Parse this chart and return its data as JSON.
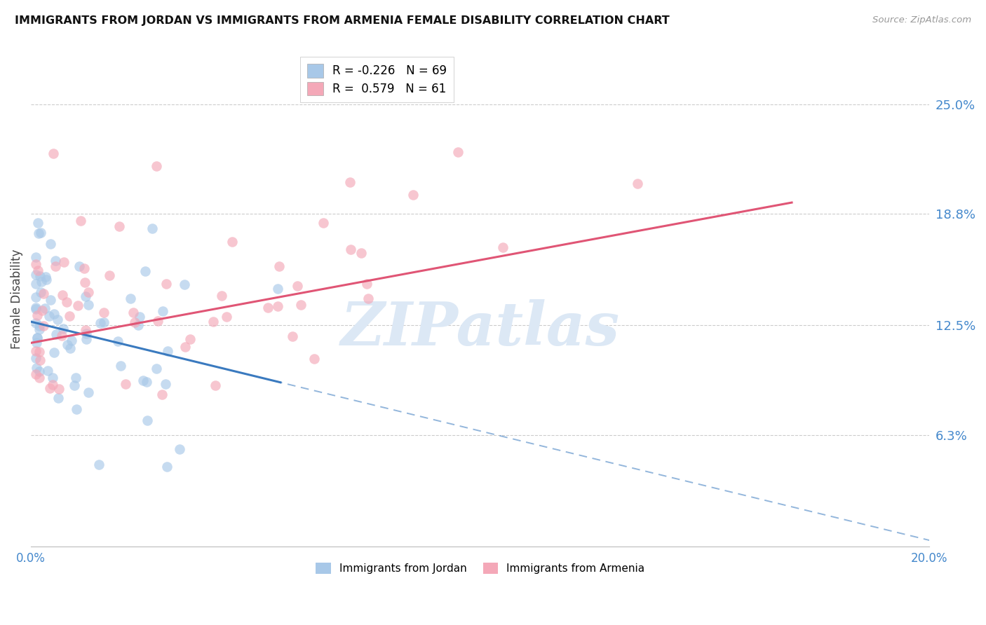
{
  "title": "IMMIGRANTS FROM JORDAN VS IMMIGRANTS FROM ARMENIA FEMALE DISABILITY CORRELATION CHART",
  "source": "Source: ZipAtlas.com",
  "ylabel": "Female Disability",
  "ytick_labels": [
    "25.0%",
    "18.8%",
    "12.5%",
    "6.3%"
  ],
  "ytick_values": [
    0.25,
    0.188,
    0.125,
    0.063
  ],
  "xlim": [
    0.0,
    0.2
  ],
  "ylim": [
    0.0,
    0.28
  ],
  "jordan_color": "#a8c8e8",
  "armenia_color": "#f4a8b8",
  "jordan_line_color": "#3a7abf",
  "armenia_line_color": "#e05575",
  "jordan_R": -0.226,
  "armenia_R": 0.579,
  "jordan_N": 69,
  "armenia_N": 61,
  "legend_jordan_r": "-0.226",
  "legend_jordan_n": "69",
  "legend_armenia_r": "0.579",
  "legend_armenia_n": "61",
  "watermark": "ZIPatlas",
  "watermark_color": "#dce8f5"
}
